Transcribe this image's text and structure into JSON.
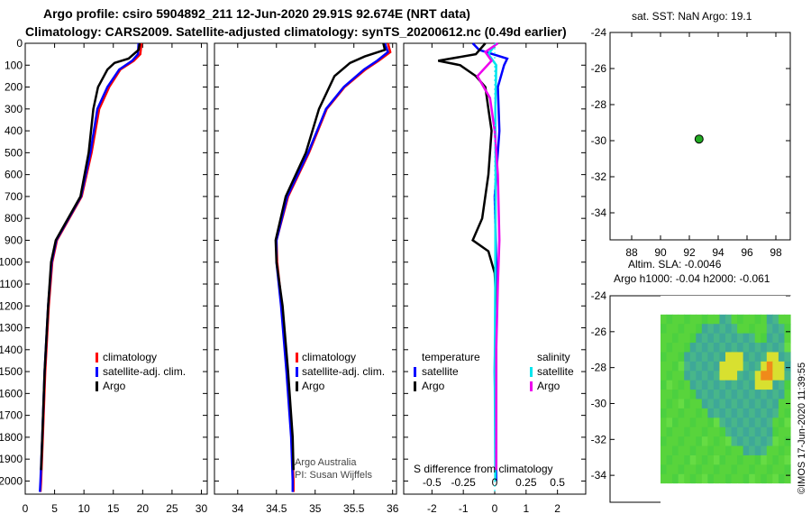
{
  "header": {
    "line1": "Argo profile: csiro 5904892_211 12-Jun-2020 29.91S 92.674E (NRT data)",
    "line2": "Climatology: CARS2009. Satellite-adjusted climatology: synTS_20200612.nc (0.49d earlier)"
  },
  "colors": {
    "climatology": "#ff0000",
    "satellite": "#0000ff",
    "argo": "#000000",
    "sat_salinity": "#00e5ee",
    "argo_salinity": "#ee00ee",
    "float": "#22aa22"
  },
  "chart_data": [
    {
      "id": "temperature",
      "type": "line",
      "xlim": [
        0,
        31
      ],
      "ylim": [
        0,
        2060
      ],
      "xticks": [
        "0",
        "5",
        "10",
        "15",
        "20",
        "25",
        "30"
      ],
      "yticks": [
        "0",
        "100",
        "200",
        "300",
        "400",
        "500",
        "600",
        "700",
        "800",
        "900",
        "1000",
        "1100",
        "1200",
        "1300",
        "1400",
        "1500",
        "1600",
        "1700",
        "1800",
        "1900",
        "2000"
      ],
      "legend": {
        "clim": "climatology",
        "sat": "satellite-adj. clim.",
        "argo": "Argo"
      },
      "series": [
        {
          "name": "climatology",
          "depth": [
            0,
            50,
            80,
            120,
            200,
            300,
            500,
            700,
            900,
            1000,
            1200,
            1500,
            1800,
            2000,
            2050
          ],
          "values": [
            19.8,
            19.6,
            18.5,
            16.2,
            14.3,
            12.6,
            11.3,
            9.6,
            5.4,
            4.6,
            4.0,
            3.4,
            3.0,
            2.7,
            2.6
          ]
        },
        {
          "name": "satellite-adj. clim.",
          "depth": [
            0,
            50,
            80,
            120,
            200,
            300,
            500,
            700,
            900,
            1000,
            1200,
            1500,
            1800,
            2000,
            2050
          ],
          "values": [
            19.3,
            19.2,
            18.2,
            16.0,
            14.0,
            12.3,
            11.1,
            9.5,
            5.3,
            4.5,
            3.9,
            3.3,
            2.9,
            2.6,
            2.5
          ]
        },
        {
          "name": "Argo",
          "depth": [
            0,
            30,
            70,
            90,
            120,
            200,
            300,
            500,
            700,
            900,
            1000,
            1200,
            1500,
            1800,
            1950
          ],
          "values": [
            19.5,
            19.3,
            17.6,
            15.2,
            14.0,
            12.4,
            11.6,
            10.8,
            9.4,
            5.2,
            4.4,
            3.9,
            3.3,
            2.9,
            2.7
          ]
        }
      ]
    },
    {
      "id": "salinity",
      "type": "line",
      "xlim": [
        33.7,
        36.05
      ],
      "ylim": [
        0,
        2060
      ],
      "xticks": [
        "34",
        "34.5",
        "35",
        "35.5",
        "36"
      ],
      "legend": {
        "clim": "climatology",
        "sat": "satellite-adj. clim.",
        "argo": "Argo"
      },
      "annotation": [
        "Argo Australia",
        "PI: Susan Wijffels"
      ],
      "series": [
        {
          "name": "climatology",
          "depth": [
            0,
            40,
            80,
            120,
            200,
            300,
            500,
            700,
            900,
            1000,
            1200,
            1500,
            1800,
            2000,
            2050
          ],
          "values": [
            35.94,
            35.97,
            35.82,
            35.65,
            35.38,
            35.15,
            34.92,
            34.65,
            34.5,
            34.51,
            34.57,
            34.64,
            34.7,
            34.72,
            34.72
          ]
        },
        {
          "name": "satellite-adj. clim.",
          "depth": [
            0,
            40,
            80,
            120,
            200,
            300,
            500,
            700,
            900,
            1000,
            1200,
            1500,
            1800,
            2000,
            2050
          ],
          "values": [
            35.9,
            35.94,
            35.8,
            35.63,
            35.37,
            35.14,
            34.91,
            34.64,
            34.5,
            34.5,
            34.56,
            34.63,
            34.69,
            34.71,
            34.71
          ]
        },
        {
          "name": "Argo",
          "depth": [
            0,
            30,
            60,
            90,
            150,
            300,
            500,
            700,
            900,
            1000,
            1200,
            1500,
            1800,
            1950
          ],
          "values": [
            35.88,
            35.9,
            35.64,
            35.45,
            35.25,
            35.05,
            34.88,
            34.62,
            34.49,
            34.5,
            34.58,
            34.65,
            34.71,
            34.72
          ]
        }
      ]
    },
    {
      "id": "differences",
      "type": "line",
      "xlim": [
        -2.9,
        2.9
      ],
      "ylim": [
        0,
        2060
      ],
      "xticks": [
        "-2",
        "-1",
        "0",
        "1",
        "2"
      ],
      "x2ticks": [
        "-0.5",
        "-0.25",
        "0",
        "0.25",
        "0.5"
      ],
      "xlabel": "S difference from climatology",
      "legend": {
        "temperature": "temperature",
        "salinity": "salinity",
        "sat": "satellite",
        "argo": "Argo"
      },
      "series": [
        {
          "name": "temperature satellite",
          "depth": [
            0,
            30,
            70,
            100,
            200,
            400,
            700,
            1000,
            1500,
            2000
          ],
          "values": [
            -0.7,
            -0.5,
            0.4,
            0.3,
            0.1,
            0.15,
            0.0,
            0.05,
            0.0,
            0.05
          ]
        },
        {
          "name": "temperature Argo",
          "depth": [
            0,
            50,
            80,
            100,
            150,
            200,
            300,
            400,
            600,
            800,
            900,
            950,
            1050,
            1200,
            1500,
            1950
          ],
          "values": [
            -0.3,
            -0.6,
            -1.8,
            -1.1,
            -0.6,
            -0.3,
            -0.2,
            -0.1,
            -0.2,
            -0.4,
            -0.7,
            -0.2,
            0.0,
            0.05,
            0.05,
            0.05
          ]
        },
        {
          "name": "salinity satellite",
          "depth": [
            0,
            50,
            100,
            300,
            600,
            1000,
            1500,
            2000
          ],
          "values": [
            0.05,
            -0.2,
            0.05,
            0.02,
            0.03,
            0.02,
            0.0,
            0.02
          ]
        },
        {
          "name": "salinity Argo",
          "depth": [
            0,
            40,
            80,
            150,
            250,
            400,
            600,
            900,
            1100,
            1400,
            1700,
            1950
          ],
          "values": [
            0.1,
            -0.3,
            -0.1,
            -0.55,
            -0.15,
            0.0,
            0.1,
            0.15,
            0.1,
            0.05,
            0.05,
            0.05
          ]
        }
      ]
    },
    {
      "id": "position-map",
      "type": "scatter",
      "title": "sat. SST: NaN Argo: 19.1",
      "xlim": [
        86.5,
        99
      ],
      "ylim": [
        -35.5,
        -24
      ],
      "xticks": [
        "88",
        "90",
        "92",
        "94",
        "96",
        "98"
      ],
      "yticks": [
        "-24",
        "-26",
        "-28",
        "-30",
        "-32",
        "-34"
      ],
      "float_lon": 92.674,
      "float_lat": -29.91
    },
    {
      "id": "sla-map",
      "type": "heatmap",
      "title1": "Altim. SLA: -0.0046",
      "title2": "Argo h1000: -0.04 h2000: -0.061",
      "ylim": [
        -35.5,
        -24
      ],
      "yticks": [
        "-24",
        "-26",
        "-28",
        "-30",
        "-32",
        "-34"
      ],
      "cells": [
        "0000000000000000000000",
        "0000000000000000000000",
        "2222222222332222223322",
        "2222222333333222223332",
        "2222223333333333223332",
        "2222233333333333333332",
        "2222333333344433334433",
        "2222333333444433345443",
        "2222333333444333455443",
        "2222233333333333444332",
        "2222223333333333333332",
        "2222222333333333333322",
        "2222222233333333333322",
        "2222222222333333333222",
        "2222222222233333333222",
        "2222222222223333333222",
        "2222222222222233332222",
        "2222222222222222222222",
        "2222222222222222222222",
        "2222222222222222222222",
        "0000000000000000000000",
        "0000000000000000000000"
      ]
    }
  ],
  "credit": "©IMOS 17-Jun-2020 11:39:55"
}
